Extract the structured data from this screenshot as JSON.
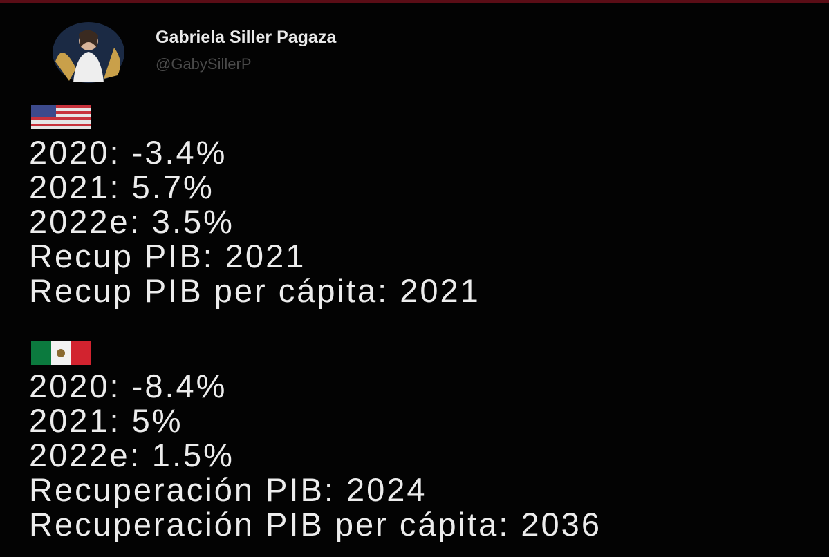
{
  "author": {
    "name": "Gabriela Siller Pagaza",
    "handle": "@GabySillerP"
  },
  "sections": [
    {
      "lines": [
        "2020: -3.4%",
        "2021: 5.7%",
        "2022e: 3.5%",
        "Recup PIB: 2021",
        "Recup PIB per cápita: 2021"
      ]
    },
    {
      "lines": [
        "2020: -8.4%",
        "2021: 5%",
        "2022e: 1.5%",
        "Recuperación PIB: 2024",
        "Recuperación PIB per cápita: 2036"
      ]
    }
  ]
}
